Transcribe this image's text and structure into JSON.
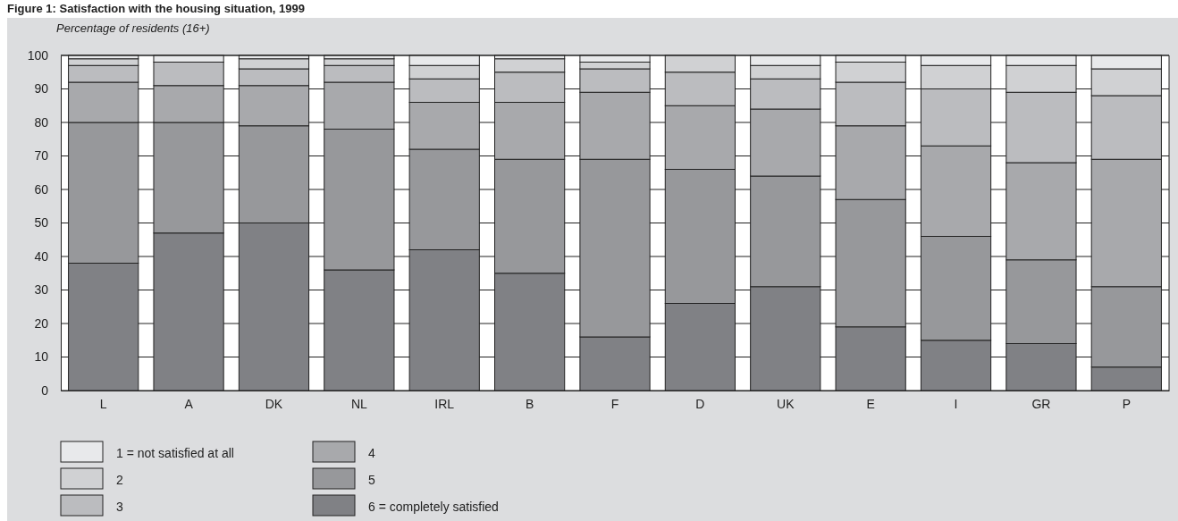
{
  "chart_data": {
    "type": "bar",
    "title": "Figure 1: Satisfaction with the housing situation, 1999",
    "ylabel": "Percentage of residents (16+)",
    "stacked": true,
    "grid": "y",
    "legend": "bottom",
    "categories": [
      "L",
      "A",
      "DK",
      "NL",
      "IRL",
      "B",
      "F",
      "D",
      "UK",
      "E",
      "I",
      "GR",
      "P"
    ],
    "ylim": [
      0,
      100
    ],
    "yticks": [
      0,
      10,
      20,
      30,
      40,
      50,
      60,
      70,
      80,
      90,
      100
    ],
    "series": [
      {
        "name": "6 = completely satisfied",
        "color": "#808185",
        "values": [
          38,
          47,
          50,
          36,
          42,
          35,
          16,
          26,
          31,
          19,
          15,
          14,
          7
        ]
      },
      {
        "name": "5",
        "color": "#97989b",
        "values": [
          42,
          33,
          29,
          42,
          30,
          34,
          53,
          40,
          33,
          38,
          31,
          25,
          24
        ]
      },
      {
        "name": "4",
        "color": "#a8a9ac",
        "values": [
          12,
          11,
          12,
          14,
          14,
          17,
          20,
          19,
          20,
          22,
          27,
          29,
          38
        ]
      },
      {
        "name": "3",
        "color": "#bbbcbf",
        "values": [
          5,
          7,
          5,
          5,
          7,
          9,
          7,
          10,
          9,
          13,
          17,
          21,
          19
        ]
      },
      {
        "name": "2",
        "color": "#d0d1d3",
        "values": [
          2,
          0,
          3,
          2,
          4,
          4,
          2,
          5,
          4,
          6,
          7,
          8,
          8
        ]
      },
      {
        "name": "1 = not satisfied at all",
        "color": "#e8e9eb",
        "values": [
          1,
          2,
          1,
          1,
          3,
          1,
          2,
          0,
          3,
          2,
          3,
          3,
          4
        ]
      }
    ]
  }
}
